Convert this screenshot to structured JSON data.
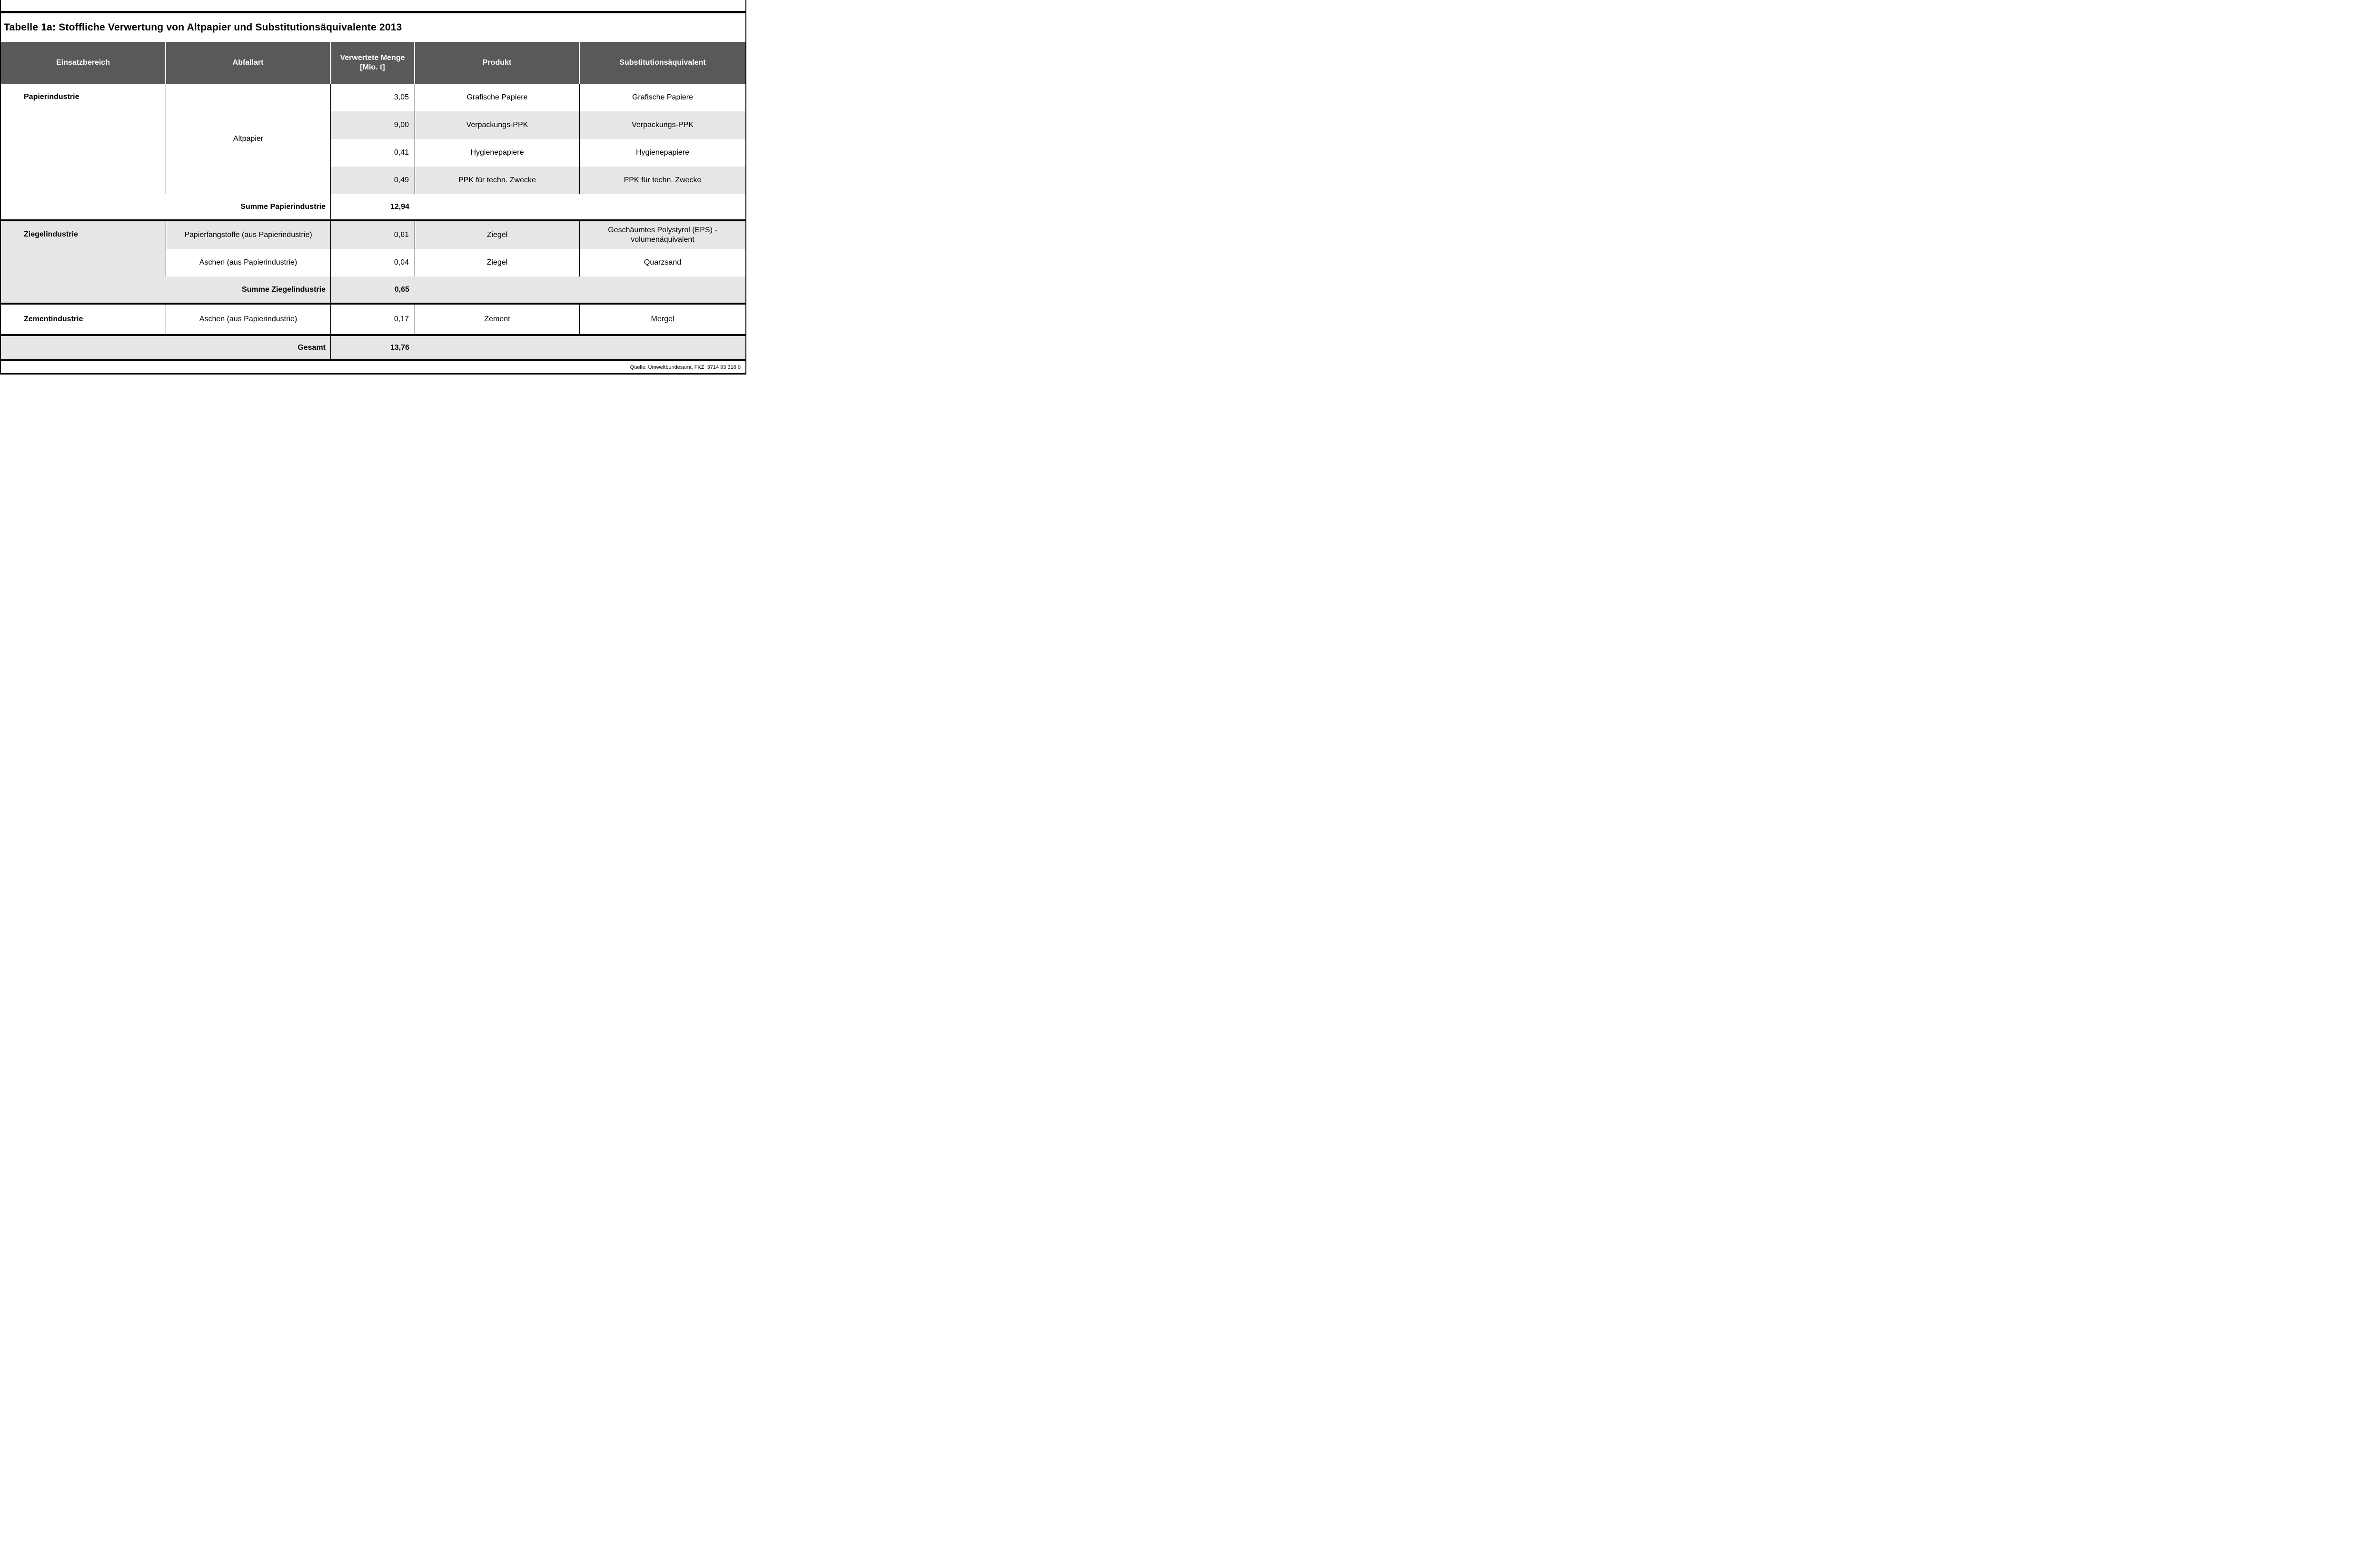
{
  "title": "Tabelle 1a: Stoffliche Verwertung von Altpapier und Substitutionsäquivalente 2013",
  "header": {
    "einsatzbereich": "Einsatzbereich",
    "abfallart": "Abfallart",
    "menge_line1": "Verwertete Menge",
    "menge_line2": "[Mio. t]",
    "produkt": "Produkt",
    "substitution": "Substitutionsäquivalent"
  },
  "sections": {
    "papier": {
      "einsatzbereich": "Papierindustrie",
      "abfallart": "Altpapier",
      "rows": [
        {
          "menge": "3,05",
          "produkt": "Grafische Papiere",
          "substitution": "Grafische Papiere"
        },
        {
          "menge": "9,00",
          "produkt": "Verpackungs-PPK",
          "substitution": "Verpackungs-PPK"
        },
        {
          "menge": "0,41",
          "produkt": "Hygienepapiere",
          "substitution": "Hygienepapiere"
        },
        {
          "menge": "0,49",
          "produkt": "PPK für techn. Zwecke",
          "substitution": "PPK für techn. Zwecke"
        }
      ],
      "summe_label": "Summe Papierindustrie",
      "summe_menge": "12,94"
    },
    "ziegel": {
      "einsatzbereich": "Ziegelindustrie",
      "rows": [
        {
          "abfallart": "Papierfangstoffe (aus Papierindustrie)",
          "menge": "0,61",
          "produkt": "Ziegel",
          "substitution": "Geschäumtes Polystyrol (EPS) - volumenäquivalent"
        },
        {
          "abfallart": "Aschen (aus Papierindustrie)",
          "menge": "0,04",
          "produkt": "Ziegel",
          "substitution": "Quarzsand"
        }
      ],
      "summe_label": "Summe Ziegelindustrie",
      "summe_menge": "0,65"
    },
    "zement": {
      "einsatzbereich": "Zementindustrie",
      "row": {
        "abfallart": "Aschen (aus Papierindustrie)",
        "menge": "0,17",
        "produkt": "Zement",
        "substitution": "Mergel"
      }
    },
    "gesamt": {
      "label": "Gesamt",
      "menge": "13,76"
    }
  },
  "source": "Quelle: Umweltbundesamt, FKZ  3714 93 316 0",
  "colors": {
    "header_bg": "#595959",
    "row_alt_bg": "#e6e6e6",
    "border": "#000000"
  }
}
